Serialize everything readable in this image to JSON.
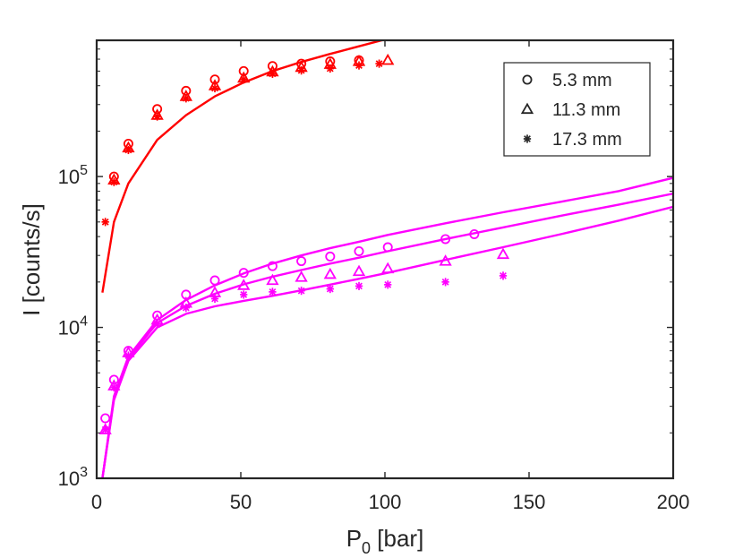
{
  "chart_data": {
    "type": "scatter",
    "title": "",
    "xlabel": "P",
    "xlabel_sub": "0",
    "xlabel_unit": "[bar]",
    "ylabel": "I [counts/s]",
    "xlim": [
      0,
      200
    ],
    "ylim": [
      1000,
      800000
    ],
    "yscale": "log",
    "grid": false,
    "legend_position": "top-right",
    "x_ticks": [
      {
        "value": 0,
        "label": "0"
      },
      {
        "value": 50,
        "label": "50"
      },
      {
        "value": 100,
        "label": "100"
      },
      {
        "value": 150,
        "label": "150"
      },
      {
        "value": 200,
        "label": "200"
      }
    ],
    "y_ticks": [
      {
        "value": 1000,
        "label_base": "10",
        "label_exp": "3"
      },
      {
        "value": 10000,
        "label_base": "10",
        "label_exp": "4"
      },
      {
        "value": 100000,
        "label_base": "10",
        "label_exp": "5"
      }
    ],
    "legend": [
      {
        "marker": "circle",
        "label": "5.3 mm"
      },
      {
        "marker": "triangle",
        "label": "11.3 mm"
      },
      {
        "marker": "asterisk",
        "label": "17.3 mm"
      }
    ],
    "series": [
      {
        "name": "red 5.3 mm",
        "color": "#ff0000",
        "marker": "circle",
        "x": [
          6,
          11,
          21,
          31,
          41,
          51,
          61,
          71,
          81,
          91
        ],
        "y": [
          100000,
          165000,
          280000,
          370000,
          440000,
          500000,
          540000,
          560000,
          580000,
          590000
        ]
      },
      {
        "name": "red 11.3 mm",
        "color": "#ff0000",
        "marker": "triangle",
        "x": [
          6,
          11,
          21,
          31,
          41,
          51,
          61,
          71,
          81,
          91,
          101
        ],
        "y": [
          95000,
          155000,
          255000,
          340000,
          400000,
          450000,
          495000,
          530000,
          555000,
          580000,
          590000
        ]
      },
      {
        "name": "red 17.3 mm",
        "color": "#ff0000",
        "marker": "asterisk",
        "x": [
          3,
          6,
          11,
          21,
          31,
          41,
          51,
          61,
          71,
          81,
          91,
          98
        ],
        "y": [
          50000,
          92000,
          150000,
          250000,
          330000,
          385000,
          440000,
          480000,
          505000,
          520000,
          545000,
          560000
        ]
      },
      {
        "name": "magenta 5.3 mm",
        "color": "#ff00ff",
        "marker": "circle",
        "x": [
          3,
          6,
          11,
          21,
          31,
          41,
          51,
          61,
          71,
          81,
          91,
          101,
          121,
          131
        ],
        "y": [
          2500,
          4500,
          7000,
          12000,
          16500,
          20500,
          23000,
          25500,
          27500,
          29500,
          32000,
          34000,
          38500,
          41500
        ]
      },
      {
        "name": "magenta 11.3 mm",
        "color": "#ff00ff",
        "marker": "triangle",
        "x": [
          3,
          6,
          11,
          21,
          31,
          41,
          51,
          61,
          71,
          81,
          91,
          101,
          121,
          141
        ],
        "y": [
          2100,
          4100,
          6800,
          11200,
          14500,
          17000,
          19000,
          20500,
          21500,
          22500,
          23500,
          24500,
          27500,
          30500
        ]
      },
      {
        "name": "magenta 17.3 mm",
        "color": "#ff00ff",
        "marker": "asterisk",
        "x": [
          3,
          6,
          11,
          21,
          31,
          41,
          51,
          61,
          71,
          81,
          91,
          101,
          121,
          141
        ],
        "y": [
          2100,
          4000,
          6500,
          10500,
          13500,
          15500,
          16500,
          17200,
          17500,
          18000,
          18800,
          19200,
          20000,
          22000
        ]
      }
    ],
    "fit_lines": [
      {
        "name": "red fit",
        "color": "#ff0000",
        "x": [
          2,
          6,
          11,
          21,
          31,
          41,
          51,
          61,
          71,
          81,
          91,
          101
        ],
        "y": [
          17000,
          50000,
          90000,
          175000,
          255000,
          340000,
          420000,
          500000,
          575000,
          650000,
          730000,
          820000
        ]
      },
      {
        "name": "magenta fit 5.3 mm",
        "color": "#ff00ff",
        "x": [
          2,
          6,
          11,
          21,
          31,
          41,
          51,
          61,
          71,
          81,
          91,
          101,
          121,
          141,
          161,
          181,
          200
        ],
        "y": [
          1000,
          3500,
          6400,
          11200,
          15200,
          19000,
          22800,
          26500,
          30000,
          33500,
          37000,
          41000,
          49000,
          58000,
          68000,
          80000,
          98000
        ]
      },
      {
        "name": "magenta fit 11.3 mm",
        "color": "#ff00ff",
        "x": [
          2,
          6,
          11,
          21,
          31,
          41,
          51,
          61,
          71,
          81,
          91,
          101,
          121,
          141,
          161,
          181,
          200
        ],
        "y": [
          1000,
          3400,
          6200,
          10700,
          13900,
          16700,
          19300,
          21700,
          24000,
          26500,
          29000,
          32000,
          38500,
          46000,
          55000,
          65000,
          77000
        ]
      },
      {
        "name": "magenta fit 17.3 mm",
        "color": "#ff00ff",
        "x": [
          2,
          6,
          11,
          21,
          31,
          41,
          51,
          61,
          71,
          81,
          91,
          101,
          121,
          141,
          161,
          181,
          200
        ],
        "y": [
          1000,
          3300,
          6000,
          10000,
          12300,
          13800,
          15000,
          16200,
          17600,
          19200,
          21000,
          23000,
          28000,
          34000,
          41500,
          51000,
          63000
        ]
      }
    ]
  }
}
